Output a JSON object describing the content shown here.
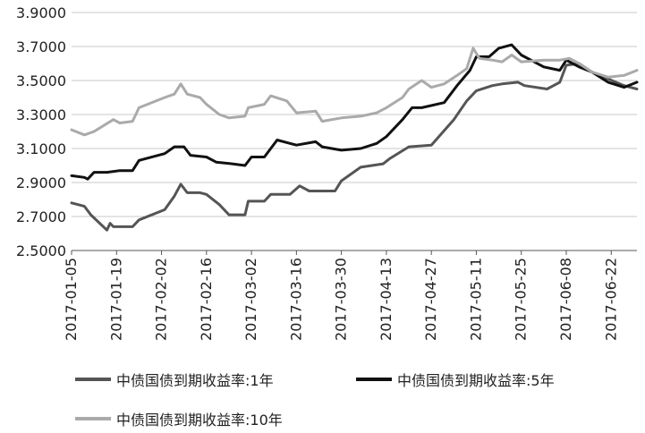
{
  "chart_data": {
    "type": "line",
    "title": "",
    "xlabel": "",
    "ylabel": "",
    "ylim": [
      2.5,
      3.9
    ],
    "y_ticks": [
      "2.5000",
      "2.7000",
      "2.9000",
      "3.1000",
      "3.3000",
      "3.5000",
      "3.7000",
      "3.9000"
    ],
    "x_ticks": [
      "2017-01-05",
      "2017-01-19",
      "2017-02-02",
      "2017-02-16",
      "2017-03-02",
      "2017-03-16",
      "2017-03-30",
      "2017-04-13",
      "2017-04-27",
      "2017-05-11",
      "2017-05-25",
      "2017-06-08",
      "2017-06-22"
    ],
    "x_range": [
      "2017-01-05",
      "2017-06-30"
    ],
    "grid": "horizontal",
    "legend_position": "bottom",
    "series": [
      {
        "name": "中债国债到期收益率:1年",
        "color": "#555555",
        "points": [
          [
            "2017-01-05",
            2.78
          ],
          [
            "2017-01-09",
            2.76
          ],
          [
            "2017-01-11",
            2.71
          ],
          [
            "2017-01-16",
            2.62
          ],
          [
            "2017-01-17",
            2.66
          ],
          [
            "2017-01-18",
            2.64
          ],
          [
            "2017-01-24",
            2.64
          ],
          [
            "2017-01-26",
            2.68
          ],
          [
            "2017-02-03",
            2.74
          ],
          [
            "2017-02-06",
            2.82
          ],
          [
            "2017-02-08",
            2.89
          ],
          [
            "2017-02-10",
            2.84
          ],
          [
            "2017-02-14",
            2.84
          ],
          [
            "2017-02-16",
            2.83
          ],
          [
            "2017-02-20",
            2.77
          ],
          [
            "2017-02-23",
            2.71
          ],
          [
            "2017-02-28",
            2.71
          ],
          [
            "2017-03-01",
            2.79
          ],
          [
            "2017-03-06",
            2.79
          ],
          [
            "2017-03-08",
            2.83
          ],
          [
            "2017-03-14",
            2.83
          ],
          [
            "2017-03-17",
            2.88
          ],
          [
            "2017-03-20",
            2.85
          ],
          [
            "2017-03-23",
            2.85
          ],
          [
            "2017-03-28",
            2.85
          ],
          [
            "2017-03-30",
            2.91
          ],
          [
            "2017-04-05",
            2.99
          ],
          [
            "2017-04-12",
            3.01
          ],
          [
            "2017-04-14",
            3.04
          ],
          [
            "2017-04-20",
            3.11
          ],
          [
            "2017-04-27",
            3.12
          ],
          [
            "2017-05-04",
            3.27
          ],
          [
            "2017-05-08",
            3.38
          ],
          [
            "2017-05-11",
            3.44
          ],
          [
            "2017-05-16",
            3.47
          ],
          [
            "2017-05-19",
            3.48
          ],
          [
            "2017-05-24",
            3.49
          ],
          [
            "2017-05-26",
            3.47
          ],
          [
            "2017-06-02",
            3.45
          ],
          [
            "2017-06-06",
            3.49
          ],
          [
            "2017-06-08",
            3.59
          ],
          [
            "2017-06-12",
            3.6
          ],
          [
            "2017-06-16",
            3.55
          ],
          [
            "2017-06-21",
            3.51
          ],
          [
            "2017-06-26",
            3.47
          ],
          [
            "2017-06-30",
            3.45
          ]
        ]
      },
      {
        "name": "中债国债到期收益率:5年",
        "color": "#111111",
        "points": [
          [
            "2017-01-05",
            2.94
          ],
          [
            "2017-01-09",
            2.93
          ],
          [
            "2017-01-10",
            2.92
          ],
          [
            "2017-01-12",
            2.96
          ],
          [
            "2017-01-16",
            2.96
          ],
          [
            "2017-01-20",
            2.97
          ],
          [
            "2017-01-24",
            2.97
          ],
          [
            "2017-01-26",
            3.03
          ],
          [
            "2017-02-03",
            3.07
          ],
          [
            "2017-02-06",
            3.11
          ],
          [
            "2017-02-09",
            3.11
          ],
          [
            "2017-02-11",
            3.06
          ],
          [
            "2017-02-16",
            3.05
          ],
          [
            "2017-02-19",
            3.02
          ],
          [
            "2017-02-24",
            3.01
          ],
          [
            "2017-02-28",
            3.0
          ],
          [
            "2017-03-02",
            3.05
          ],
          [
            "2017-03-06",
            3.05
          ],
          [
            "2017-03-10",
            3.15
          ],
          [
            "2017-03-14",
            3.13
          ],
          [
            "2017-03-16",
            3.12
          ],
          [
            "2017-03-22",
            3.14
          ],
          [
            "2017-03-24",
            3.11
          ],
          [
            "2017-03-30",
            3.09
          ],
          [
            "2017-04-05",
            3.1
          ],
          [
            "2017-04-10",
            3.13
          ],
          [
            "2017-04-13",
            3.17
          ],
          [
            "2017-04-18",
            3.27
          ],
          [
            "2017-04-21",
            3.34
          ],
          [
            "2017-04-24",
            3.34
          ],
          [
            "2017-05-01",
            3.37
          ],
          [
            "2017-05-05",
            3.47
          ],
          [
            "2017-05-09",
            3.56
          ],
          [
            "2017-05-11",
            3.64
          ],
          [
            "2017-05-15",
            3.64
          ],
          [
            "2017-05-18",
            3.69
          ],
          [
            "2017-05-22",
            3.71
          ],
          [
            "2017-05-25",
            3.65
          ],
          [
            "2017-06-01",
            3.58
          ],
          [
            "2017-06-06",
            3.56
          ],
          [
            "2017-06-08",
            3.62
          ],
          [
            "2017-06-12",
            3.58
          ],
          [
            "2017-06-16",
            3.55
          ],
          [
            "2017-06-21",
            3.49
          ],
          [
            "2017-06-26",
            3.46
          ],
          [
            "2017-06-30",
            3.49
          ]
        ]
      },
      {
        "name": "中债国债到期收益率:10年",
        "color": "#aaaaaa",
        "points": [
          [
            "2017-01-05",
            3.21
          ],
          [
            "2017-01-09",
            3.18
          ],
          [
            "2017-01-12",
            3.2
          ],
          [
            "2017-01-18",
            3.27
          ],
          [
            "2017-01-20",
            3.25
          ],
          [
            "2017-01-24",
            3.26
          ],
          [
            "2017-01-26",
            3.34
          ],
          [
            "2017-02-03",
            3.4
          ],
          [
            "2017-02-06",
            3.42
          ],
          [
            "2017-02-08",
            3.48
          ],
          [
            "2017-02-10",
            3.42
          ],
          [
            "2017-02-14",
            3.4
          ],
          [
            "2017-02-16",
            3.36
          ],
          [
            "2017-02-20",
            3.3
          ],
          [
            "2017-02-23",
            3.28
          ],
          [
            "2017-02-28",
            3.29
          ],
          [
            "2017-03-01",
            3.34
          ],
          [
            "2017-03-06",
            3.36
          ],
          [
            "2017-03-08",
            3.41
          ],
          [
            "2017-03-13",
            3.38
          ],
          [
            "2017-03-16",
            3.31
          ],
          [
            "2017-03-22",
            3.32
          ],
          [
            "2017-03-24",
            3.26
          ],
          [
            "2017-03-30",
            3.28
          ],
          [
            "2017-04-05",
            3.29
          ],
          [
            "2017-04-10",
            3.31
          ],
          [
            "2017-04-13",
            3.34
          ],
          [
            "2017-04-18",
            3.4
          ],
          [
            "2017-04-20",
            3.45
          ],
          [
            "2017-04-24",
            3.5
          ],
          [
            "2017-04-27",
            3.46
          ],
          [
            "2017-05-01",
            3.48
          ],
          [
            "2017-05-05",
            3.53
          ],
          [
            "2017-05-08",
            3.57
          ],
          [
            "2017-05-10",
            3.69
          ],
          [
            "2017-05-12",
            3.63
          ],
          [
            "2017-05-16",
            3.62
          ],
          [
            "2017-05-19",
            3.61
          ],
          [
            "2017-05-22",
            3.65
          ],
          [
            "2017-05-25",
            3.61
          ],
          [
            "2017-06-01",
            3.62
          ],
          [
            "2017-06-06",
            3.62
          ],
          [
            "2017-06-09",
            3.63
          ],
          [
            "2017-06-12",
            3.6
          ],
          [
            "2017-06-16",
            3.55
          ],
          [
            "2017-06-21",
            3.52
          ],
          [
            "2017-06-26",
            3.53
          ],
          [
            "2017-06-30",
            3.56
          ]
        ]
      }
    ]
  }
}
